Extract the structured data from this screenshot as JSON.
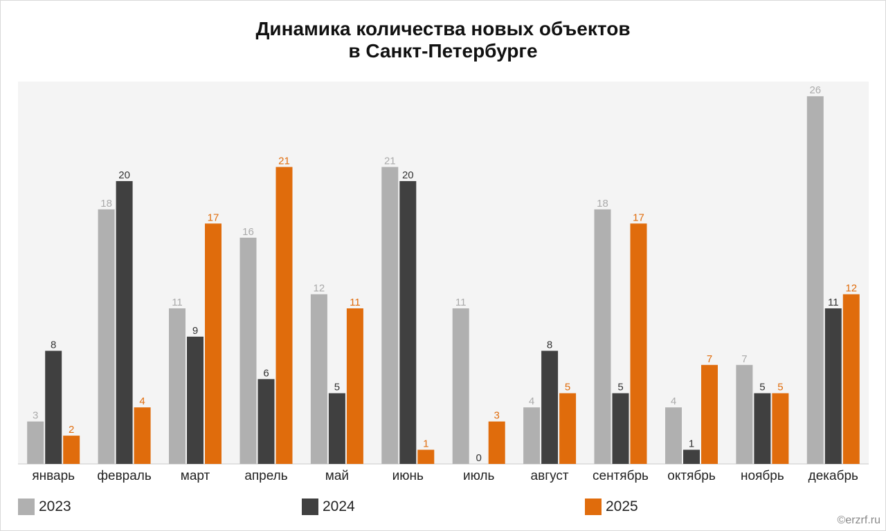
{
  "chart_data": {
    "type": "bar",
    "title_line1": "Динамика количества новых объектов",
    "title_line2": "в Санкт-Петербурге",
    "categories": [
      "январь",
      "февраль",
      "март",
      "апрель",
      "май",
      "июнь",
      "июль",
      "август",
      "сентябрь",
      "октябрь",
      "ноябрь",
      "декабрь"
    ],
    "series": [
      {
        "name": "2023",
        "color": "#b0b0b0",
        "label_color": "#aaaaaa",
        "values": [
          3,
          18,
          11,
          16,
          12,
          21,
          11,
          4,
          18,
          4,
          7,
          26
        ]
      },
      {
        "name": "2024",
        "color": "#404040",
        "label_color": "#333333",
        "values": [
          8,
          20,
          9,
          6,
          5,
          20,
          0,
          8,
          5,
          1,
          5,
          11
        ]
      },
      {
        "name": "2025",
        "color": "#e06c0c",
        "label_color": "#e06c0c",
        "values": [
          2,
          4,
          17,
          21,
          11,
          1,
          3,
          5,
          17,
          7,
          5,
          12
        ]
      }
    ],
    "ylim": [
      0,
      27
    ],
    "grid": false,
    "legend_position": "bottom",
    "xlabel": "",
    "ylabel": ""
  },
  "source": "©erzrf.ru"
}
